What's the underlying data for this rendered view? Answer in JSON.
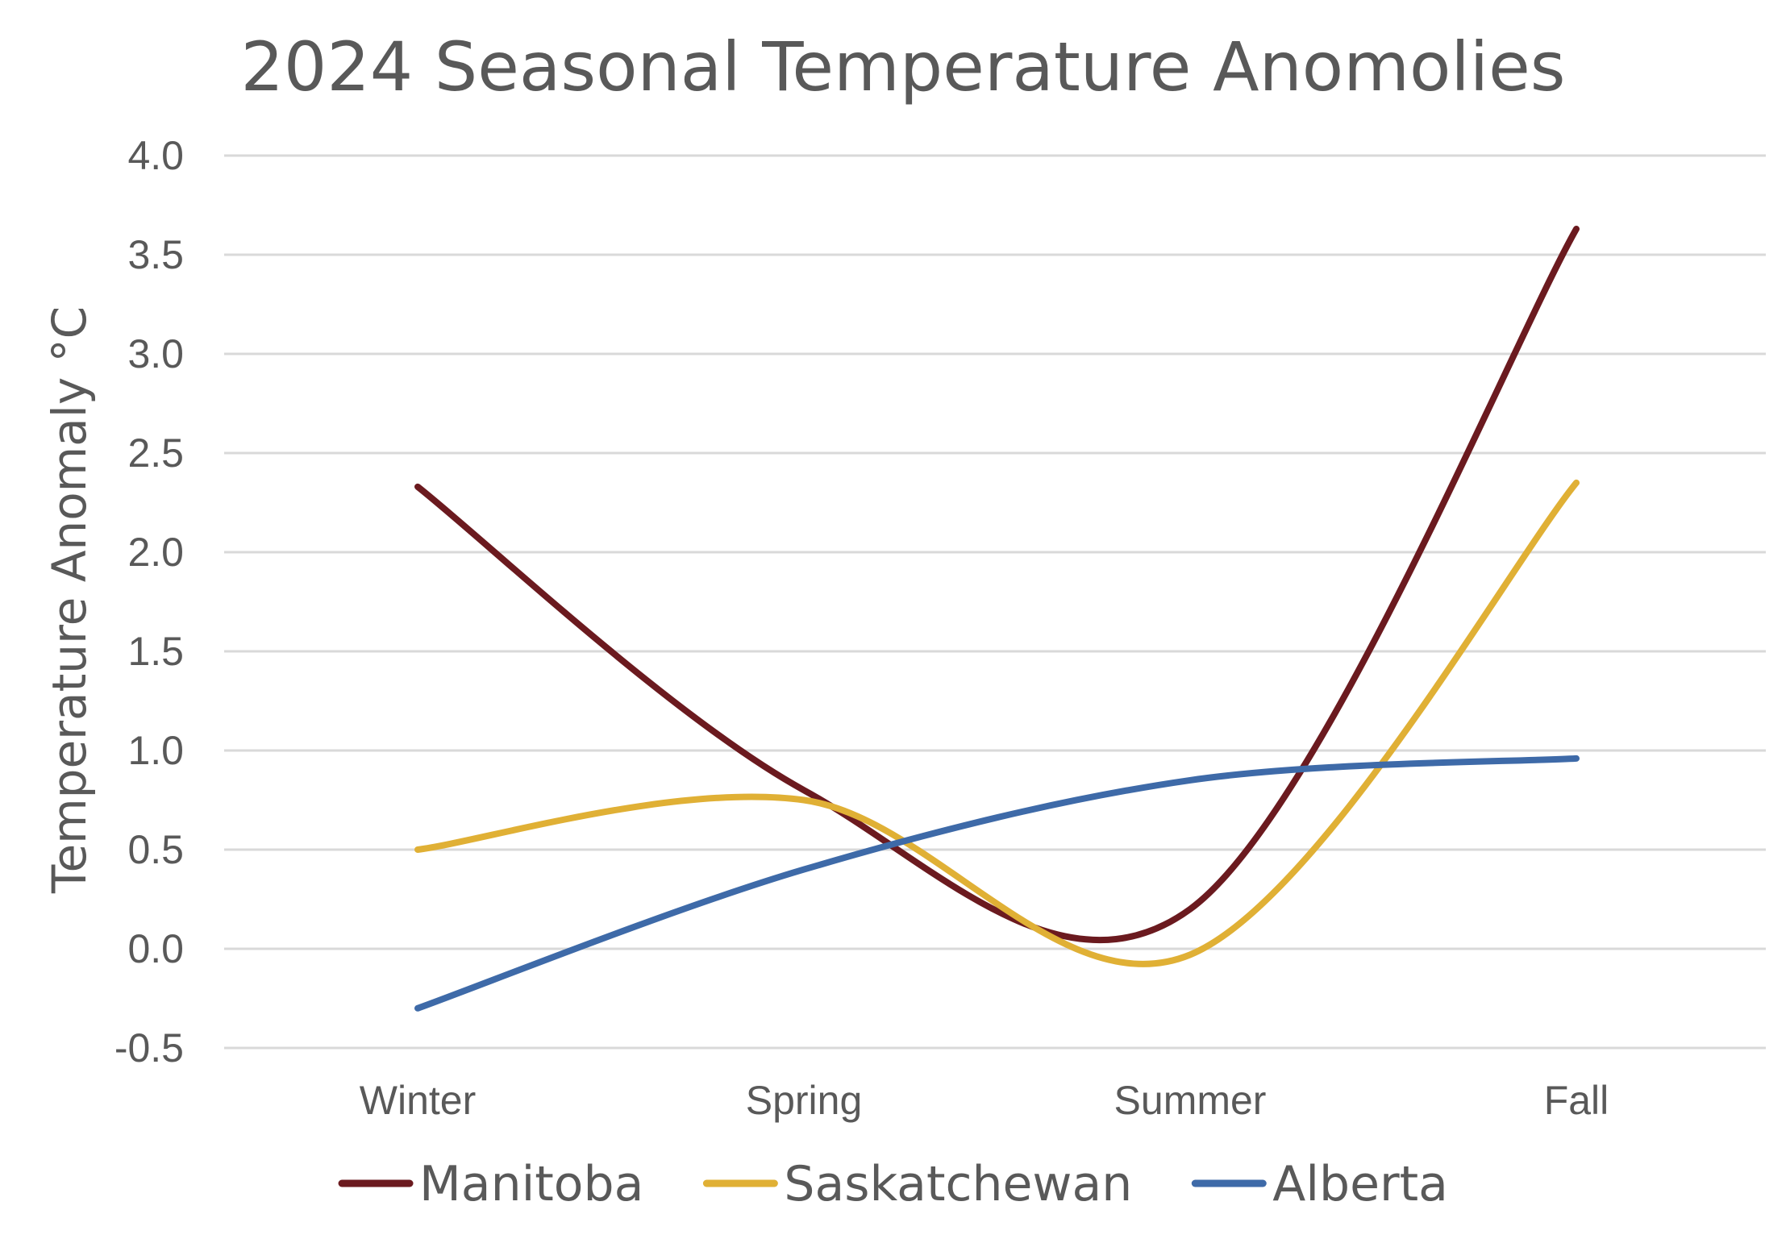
{
  "chart_data": {
    "type": "line",
    "title": "2024 Seasonal Temperature Anomolies",
    "xlabel": "",
    "ylabel": "Temperature Anomaly °C",
    "categories": [
      "Winter",
      "Spring",
      "Summer",
      "Fall"
    ],
    "ylim": [
      -0.5,
      4.0
    ],
    "yticks": [
      "4.0",
      "3.5",
      "3.0",
      "2.5",
      "2.0",
      "1.5",
      "1.0",
      "0.5",
      "0.0",
      "-0.5"
    ],
    "grid": true,
    "smoothed": true,
    "legend_position": "bottom",
    "series": [
      {
        "name": "Manitoba",
        "color": "#6b1a1f",
        "values": [
          2.33,
          0.8,
          0.2,
          3.63
        ]
      },
      {
        "name": "Saskatchewan",
        "color": "#e0b035",
        "values": [
          0.5,
          0.75,
          -0.03,
          2.35
        ]
      },
      {
        "name": "Alberta",
        "color": "#3e6aa8",
        "values": [
          -0.3,
          0.4,
          0.85,
          0.96
        ]
      }
    ]
  }
}
